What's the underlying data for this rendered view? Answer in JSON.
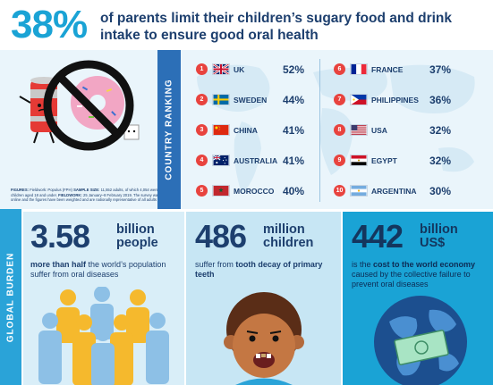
{
  "header": {
    "big_stat": "38%",
    "headline": "of parents limit their children’s sugary food and drink intake to ensure good oral health"
  },
  "ranking": {
    "section_label": "COUNTRY RANKING",
    "fine_print": {
      "figures_label": "FIGURES:",
      "source": "Fieldwork: Populus (FPH)",
      "sample_label": "SAMPLE SIZE:",
      "sample_text": "11,552 adults, of which 4,054 were parents with children aged 18 and under.",
      "fieldwork_label": "FIELDWORK:",
      "fieldwork_text": "25 January–8 February 2019. The survey was carried out online and the figures have been weighted and are nationally representative of all adults aged 18+."
    },
    "left_column": [
      {
        "rank": "1",
        "country": "UK",
        "percent": "52%",
        "flag": "uk-flag-icon"
      },
      {
        "rank": "2",
        "country": "SWEDEN",
        "percent": "44%",
        "flag": "sweden-flag-icon"
      },
      {
        "rank": "3",
        "country": "CHINA",
        "percent": "41%",
        "flag": "china-flag-icon"
      },
      {
        "rank": "4",
        "country": "AUSTRALIA",
        "percent": "41%",
        "flag": "australia-flag-icon"
      },
      {
        "rank": "5",
        "country": "MOROCCO",
        "percent": "40%",
        "flag": "morocco-flag-icon"
      }
    ],
    "right_column": [
      {
        "rank": "6",
        "country": "FRANCE",
        "percent": "37%",
        "flag": "france-flag-icon"
      },
      {
        "rank": "7",
        "country": "PHILIPPINES",
        "percent": "36%",
        "flag": "philippines-flag-icon"
      },
      {
        "rank": "8",
        "country": "USA",
        "percent": "32%",
        "flag": "usa-flag-icon"
      },
      {
        "rank": "9",
        "country": "EGYPT",
        "percent": "32%",
        "flag": "egypt-flag-icon"
      },
      {
        "rank": "10",
        "country": "ARGENTINA",
        "percent": "30%",
        "flag": "argentina-flag-icon"
      }
    ]
  },
  "burden": {
    "section_label": "GLOBAL BURDEN",
    "cards": [
      {
        "number": "3.58",
        "unit_line1": "billion",
        "unit_line2": "people",
        "desc_bold": "more than half",
        "desc_rest": " the world’s population suffer from oral diseases"
      },
      {
        "number": "486",
        "unit_line1": "million",
        "unit_line2": "children",
        "desc_plain": "suffer from ",
        "desc_bold": "tooth decay of primary teeth"
      },
      {
        "number": "442",
        "unit_line1": "billion",
        "unit_line2": "US$",
        "desc_plain": "is the ",
        "desc_bold": "cost to the world economy",
        "desc_rest": " caused by the collective failure to prevent oral diseases"
      }
    ]
  },
  "colors": {
    "accent_blue": "#1aa3d5",
    "navy": "#1d3f6e",
    "rank_red": "#e8433e",
    "panel_bg": "#eaf5fb"
  }
}
